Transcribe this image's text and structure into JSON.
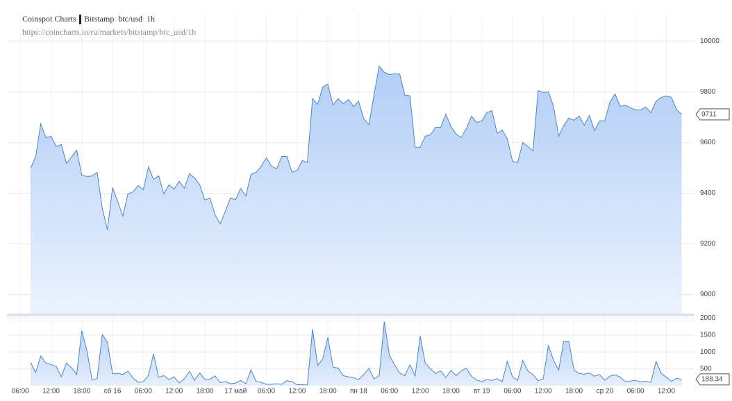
{
  "chart_data": {
    "type": "area",
    "title": "Coinspot Charts",
    "market": "Bitstamp  btc/usd  1h",
    "url": "https://coincharts.io/ru/markets/bitstamp/btc_usd/1h",
    "x": [
      8,
      9,
      10,
      11,
      12,
      13,
      14,
      15,
      16,
      17,
      18,
      19,
      20,
      21,
      22,
      23,
      24,
      25,
      26,
      27,
      28,
      29,
      30,
      31,
      32,
      33,
      34,
      35,
      36,
      37,
      38,
      39,
      40,
      41,
      42,
      43,
      44,
      45,
      46,
      47,
      48,
      49,
      50,
      51,
      52,
      53,
      54,
      55,
      56,
      57,
      58,
      59,
      60,
      61,
      62,
      63,
      64,
      65,
      66,
      67,
      68,
      69,
      70,
      71,
      72,
      73,
      74,
      75,
      76,
      77,
      78,
      79,
      80,
      81,
      82,
      83,
      84,
      85,
      86,
      87,
      88,
      89,
      90,
      91,
      92,
      93,
      94,
      95,
      96,
      97,
      98,
      99,
      100,
      101,
      102,
      103,
      104,
      105,
      106,
      107,
      108,
      109,
      110,
      111,
      112,
      113,
      114,
      115,
      116,
      117,
      118,
      119,
      120,
      121,
      122,
      123,
      124,
      125,
      126,
      127,
      128,
      129,
      130,
      131,
      132,
      133,
      134,
      135
    ],
    "series": [
      {
        "color": "#4a86c5",
        "values": [
          9499,
          9543,
          9674,
          9619,
          9625,
          9584,
          9592,
          9518,
          9543,
          9570,
          9471,
          9466,
          9468,
          9482,
          9340,
          9255,
          9422,
          9367,
          9310,
          9397,
          9405,
          9430,
          9414,
          9504,
          9455,
          9468,
          9397,
          9433,
          9416,
          9447,
          9419,
          9477,
          9460,
          9433,
          9373,
          9381,
          9315,
          9279,
          9329,
          9381,
          9375,
          9419,
          9389,
          9474,
          9482,
          9507,
          9540,
          9507,
          9496,
          9545,
          9545,
          9482,
          9490,
          9529,
          9521,
          9773,
          9751,
          9819,
          9830,
          9748,
          9773,
          9753,
          9770,
          9742,
          9762,
          9693,
          9671,
          9789,
          9901,
          9877,
          9868,
          9871,
          9871,
          9786,
          9784,
          9581,
          9581,
          9625,
          9630,
          9660,
          9660,
          9712,
          9663,
          9633,
          9619,
          9655,
          9704,
          9679,
          9685,
          9718,
          9726,
          9636,
          9649,
          9614,
          9526,
          9521,
          9600,
          9584,
          9567,
          9805,
          9797,
          9800,
          9742,
          9625,
          9666,
          9696,
          9688,
          9704,
          9668,
          9707,
          9647,
          9685,
          9685,
          9759,
          9792,
          9742,
          9748,
          9737,
          9729,
          9729,
          9740,
          9718,
          9762,
          9778,
          9784,
          9778,
          9729,
          9711
        ]
      },
      {
        "color": "#4a86c5",
        "axis": "y2",
        "values": [
          700,
          390,
          880,
          670,
          630,
          570,
          265,
          670,
          530,
          330,
          1630,
          1040,
          160,
          220,
          1510,
          1290,
          350,
          370,
          330,
          430,
          230,
          100,
          120,
          310,
          940,
          250,
          300,
          180,
          260,
          80,
          200,
          430,
          160,
          380,
          180,
          190,
          290,
          90,
          120,
          60,
          80,
          160,
          60,
          470,
          120,
          100,
          40,
          40,
          60,
          40,
          150,
          120,
          30,
          30,
          20,
          1670,
          600,
          800,
          1430,
          550,
          520,
          300,
          260,
          240,
          180,
          330,
          510,
          200,
          300,
          1900,
          900,
          620,
          380,
          300,
          620,
          290,
          1470,
          660,
          500,
          360,
          440,
          240,
          450,
          300,
          440,
          520,
          280,
          170,
          120,
          180,
          160,
          210,
          120,
          730,
          260,
          160,
          750,
          440,
          330,
          150,
          200,
          1200,
          750,
          460,
          1310,
          1310,
          460,
          360,
          340,
          380,
          280,
          330,
          160,
          280,
          320,
          260,
          120,
          140,
          160,
          110,
          140,
          100,
          720,
          370,
          250,
          130,
          220,
          188.34
        ]
      }
    ],
    "xlim": [
      3.4,
      137.5
    ],
    "xticks": [
      {
        "value": 6,
        "label": "06:00"
      },
      {
        "value": 12,
        "label": "12:00"
      },
      {
        "value": 18,
        "label": "18:00"
      },
      {
        "value": 24,
        "label": "сб 16"
      },
      {
        "value": 30,
        "label": "06:00"
      },
      {
        "value": 36,
        "label": "12:00"
      },
      {
        "value": 42,
        "label": "18:00"
      },
      {
        "value": 48,
        "label": "17 май"
      },
      {
        "value": 54,
        "label": "06:00"
      },
      {
        "value": 60,
        "label": "12:00"
      },
      {
        "value": 66,
        "label": "18:00"
      },
      {
        "value": 72,
        "label": "пн 18"
      },
      {
        "value": 78,
        "label": "06:00"
      },
      {
        "value": 84,
        "label": "12:00"
      },
      {
        "value": 90,
        "label": "18:00"
      },
      {
        "value": 96,
        "label": "вт 19"
      },
      {
        "value": 102,
        "label": "06:00"
      },
      {
        "value": 108,
        "label": "12:00"
      },
      {
        "value": 114,
        "label": "18:00"
      },
      {
        "value": 120,
        "label": "ср 20"
      },
      {
        "value": 126,
        "label": "06:00"
      },
      {
        "value": 132,
        "label": "12:00"
      }
    ],
    "ylim": [
      8925,
      10050
    ],
    "yticks": [
      9000,
      9200,
      9400,
      9600,
      9800,
      10000
    ],
    "y2lim": [
      0,
      2050
    ],
    "y2ticks": [
      500,
      1000,
      1500,
      2000
    ],
    "grid": true
  }
}
